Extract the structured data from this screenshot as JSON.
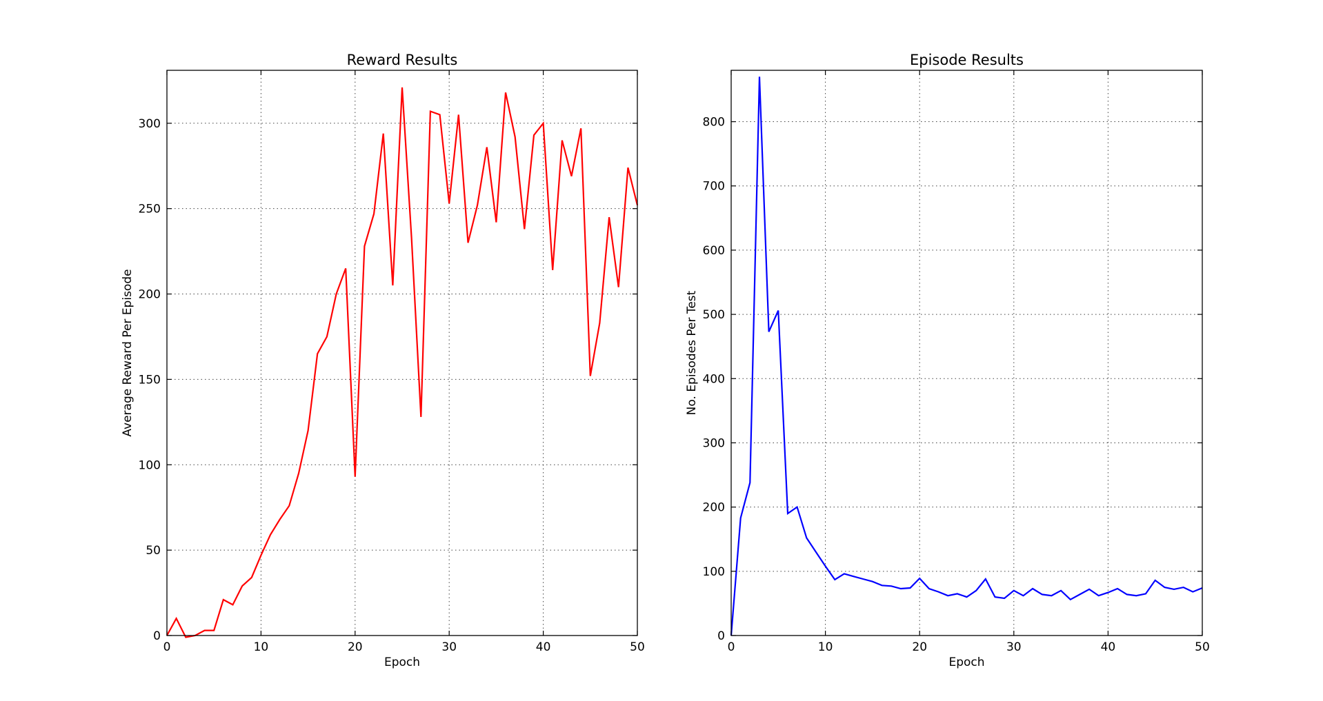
{
  "chart_data": [
    {
      "type": "line",
      "title": "Reward Results",
      "xlabel": "Epoch",
      "ylabel": "Average Reward Per Episode",
      "xlim": [
        0,
        50
      ],
      "ylim": [
        0,
        331
      ],
      "xticks": [
        "0",
        "10",
        "20",
        "30",
        "40",
        "50"
      ],
      "yticks": [
        "0",
        "50",
        "100",
        "150",
        "200",
        "250",
        "300"
      ],
      "grid": true,
      "color": "#ff0000",
      "series": [
        {
          "x": [
            0,
            1,
            2,
            3,
            4,
            5,
            6,
            7,
            8,
            9,
            10,
            11,
            12,
            13,
            14,
            15,
            16,
            17,
            18,
            19,
            20,
            21,
            22,
            23,
            24,
            25,
            26,
            27,
            28,
            29,
            30,
            31,
            32,
            33,
            34,
            35,
            36,
            37,
            38,
            39,
            40,
            41,
            42,
            43,
            44,
            45,
            46,
            47,
            48,
            49,
            50
          ],
          "values": [
            0,
            10,
            -1,
            0,
            3,
            3,
            21,
            18,
            29,
            34,
            47,
            59,
            68,
            76,
            95,
            120,
            165,
            175,
            200,
            215,
            93,
            228,
            247,
            294,
            205,
            321,
            233,
            128,
            307,
            305,
            253,
            305,
            230,
            252,
            286,
            242,
            318,
            292,
            238,
            293,
            300,
            214,
            290,
            269,
            297,
            152,
            183,
            245,
            204,
            274,
            252
          ]
        }
      ]
    },
    {
      "type": "line",
      "title": "Episode Results",
      "xlabel": "Epoch",
      "ylabel": "No. Episodes Per Test",
      "xlim": [
        0,
        50
      ],
      "ylim": [
        0,
        880
      ],
      "xticks": [
        "0",
        "10",
        "20",
        "30",
        "40",
        "50"
      ],
      "yticks": [
        "0",
        "100",
        "200",
        "300",
        "400",
        "500",
        "600",
        "700",
        "800"
      ],
      "grid": true,
      "color": "#0000ff",
      "series": [
        {
          "x": [
            0,
            1,
            2,
            3,
            4,
            5,
            6,
            7,
            8,
            9,
            10,
            11,
            12,
            13,
            14,
            15,
            16,
            17,
            18,
            19,
            20,
            21,
            22,
            23,
            24,
            25,
            26,
            27,
            28,
            29,
            30,
            31,
            32,
            33,
            34,
            35,
            36,
            37,
            38,
            39,
            40,
            41,
            42,
            43,
            44,
            45,
            46,
            47,
            48,
            49,
            50
          ],
          "values": [
            0,
            183,
            238,
            870,
            473,
            506,
            190,
            200,
            152,
            130,
            108,
            87,
            96,
            92,
            88,
            84,
            78,
            77,
            73,
            74,
            89,
            73,
            68,
            62,
            65,
            60,
            70,
            88,
            60,
            58,
            70,
            62,
            73,
            64,
            62,
            70,
            56,
            64,
            72,
            62,
            67,
            73,
            64,
            62,
            65,
            86,
            75,
            72,
            75,
            68,
            74
          ]
        }
      ]
    }
  ]
}
